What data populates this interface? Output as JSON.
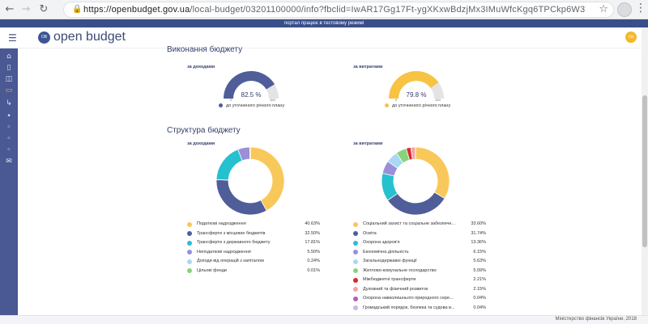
{
  "browser": {
    "url_host": "https://openbudget.gov.ua",
    "url_path": "/local-budget/03201100000/info?fbclid=IwAR17Gg17Ft-ygXKxwBdzjMx3IMuWfcKgq6TPCkp6W3TFou..."
  },
  "test_banner": "портал працює в тестовому режимі",
  "header": {
    "logo_text": "open budget",
    "logo_badge": "OB",
    "user_badge": "сн"
  },
  "sidebar_icons": [
    "home-icon",
    "document-icon",
    "chart-icon",
    "card-icon",
    "arrow-icon",
    "dot-icon",
    "dot-icon",
    "dot-icon",
    "dot-icon",
    "mail-icon"
  ],
  "execution": {
    "title": "Виконання бюджету",
    "revenue": {
      "caption": "за доходами",
      "value": 82.5,
      "label": "82.5 %",
      "tick_min": "0",
      "tick_max": "100",
      "legend": "до уточненого річного плану",
      "color": "#4f5e99"
    },
    "expenses": {
      "caption": "за витратами",
      "value": 79.8,
      "label": "79.8 %",
      "tick_min": "0",
      "tick_max": "100",
      "legend": "до уточненого річного плану",
      "color": "#f6c343"
    }
  },
  "structure": {
    "title": "Структура бюджету",
    "revenue": {
      "caption": "за доходами",
      "items": [
        {
          "label": "Податкові надходження",
          "value": "40.63%",
          "pct": 40.63,
          "color": "#f9c85a"
        },
        {
          "label": "Трансферти з місцевих бюджетів",
          "value": "32.50%",
          "pct": 32.5,
          "color": "#4f5e99"
        },
        {
          "label": "Трансферти з державного бюджету",
          "value": "17.81%",
          "pct": 17.81,
          "color": "#26c1cf"
        },
        {
          "label": "Неподаткові надходження",
          "value": "5.50%",
          "pct": 5.5,
          "color": "#9a8fd8"
        },
        {
          "label": "Доходи від операцій з капіталом",
          "value": "0.24%",
          "pct": 0.24,
          "color": "#a8d8f3"
        },
        {
          "label": "Цільові фонди",
          "value": "0.01%",
          "pct": 0.01,
          "color": "#87d37c"
        }
      ]
    },
    "expenses": {
      "caption": "за витратами",
      "items": [
        {
          "label": "Соціальний захист та соціальне забезпече...",
          "value": "33.60%",
          "pct": 33.6,
          "color": "#f9c85a"
        },
        {
          "label": "Освіта",
          "value": "31.74%",
          "pct": 31.74,
          "color": "#4f5e99"
        },
        {
          "label": "Охорона здоров'я",
          "value": "13.36%",
          "pct": 13.36,
          "color": "#26c1cf"
        },
        {
          "label": "Економічна діяльність",
          "value": "6.15%",
          "pct": 6.15,
          "color": "#9a8fd8"
        },
        {
          "label": "Загальнодержавні функції",
          "value": "5.63%",
          "pct": 5.63,
          "color": "#a8d8f3"
        },
        {
          "label": "Житлово-комунальне господарство",
          "value": "5.09%",
          "pct": 5.09,
          "color": "#87d37c"
        },
        {
          "label": "Міжбюджетні трансферти",
          "value": "2.21%",
          "pct": 2.21,
          "color": "#d9282f"
        },
        {
          "label": "Духовний та фізичний розвиток",
          "value": "2.15%",
          "pct": 2.15,
          "color": "#f7a1a6"
        },
        {
          "label": "Охорона навколишнього природного сере...",
          "value": "0.04%",
          "pct": 0.04,
          "color": "#b05ebd"
        },
        {
          "label": "Громадський порядок, безпека та судова в...",
          "value": "0.04%",
          "pct": 0.04,
          "color": "#c9b8ea"
        }
      ]
    }
  },
  "footer": {
    "text": "Міністерство фінансів України, 2018"
  }
}
